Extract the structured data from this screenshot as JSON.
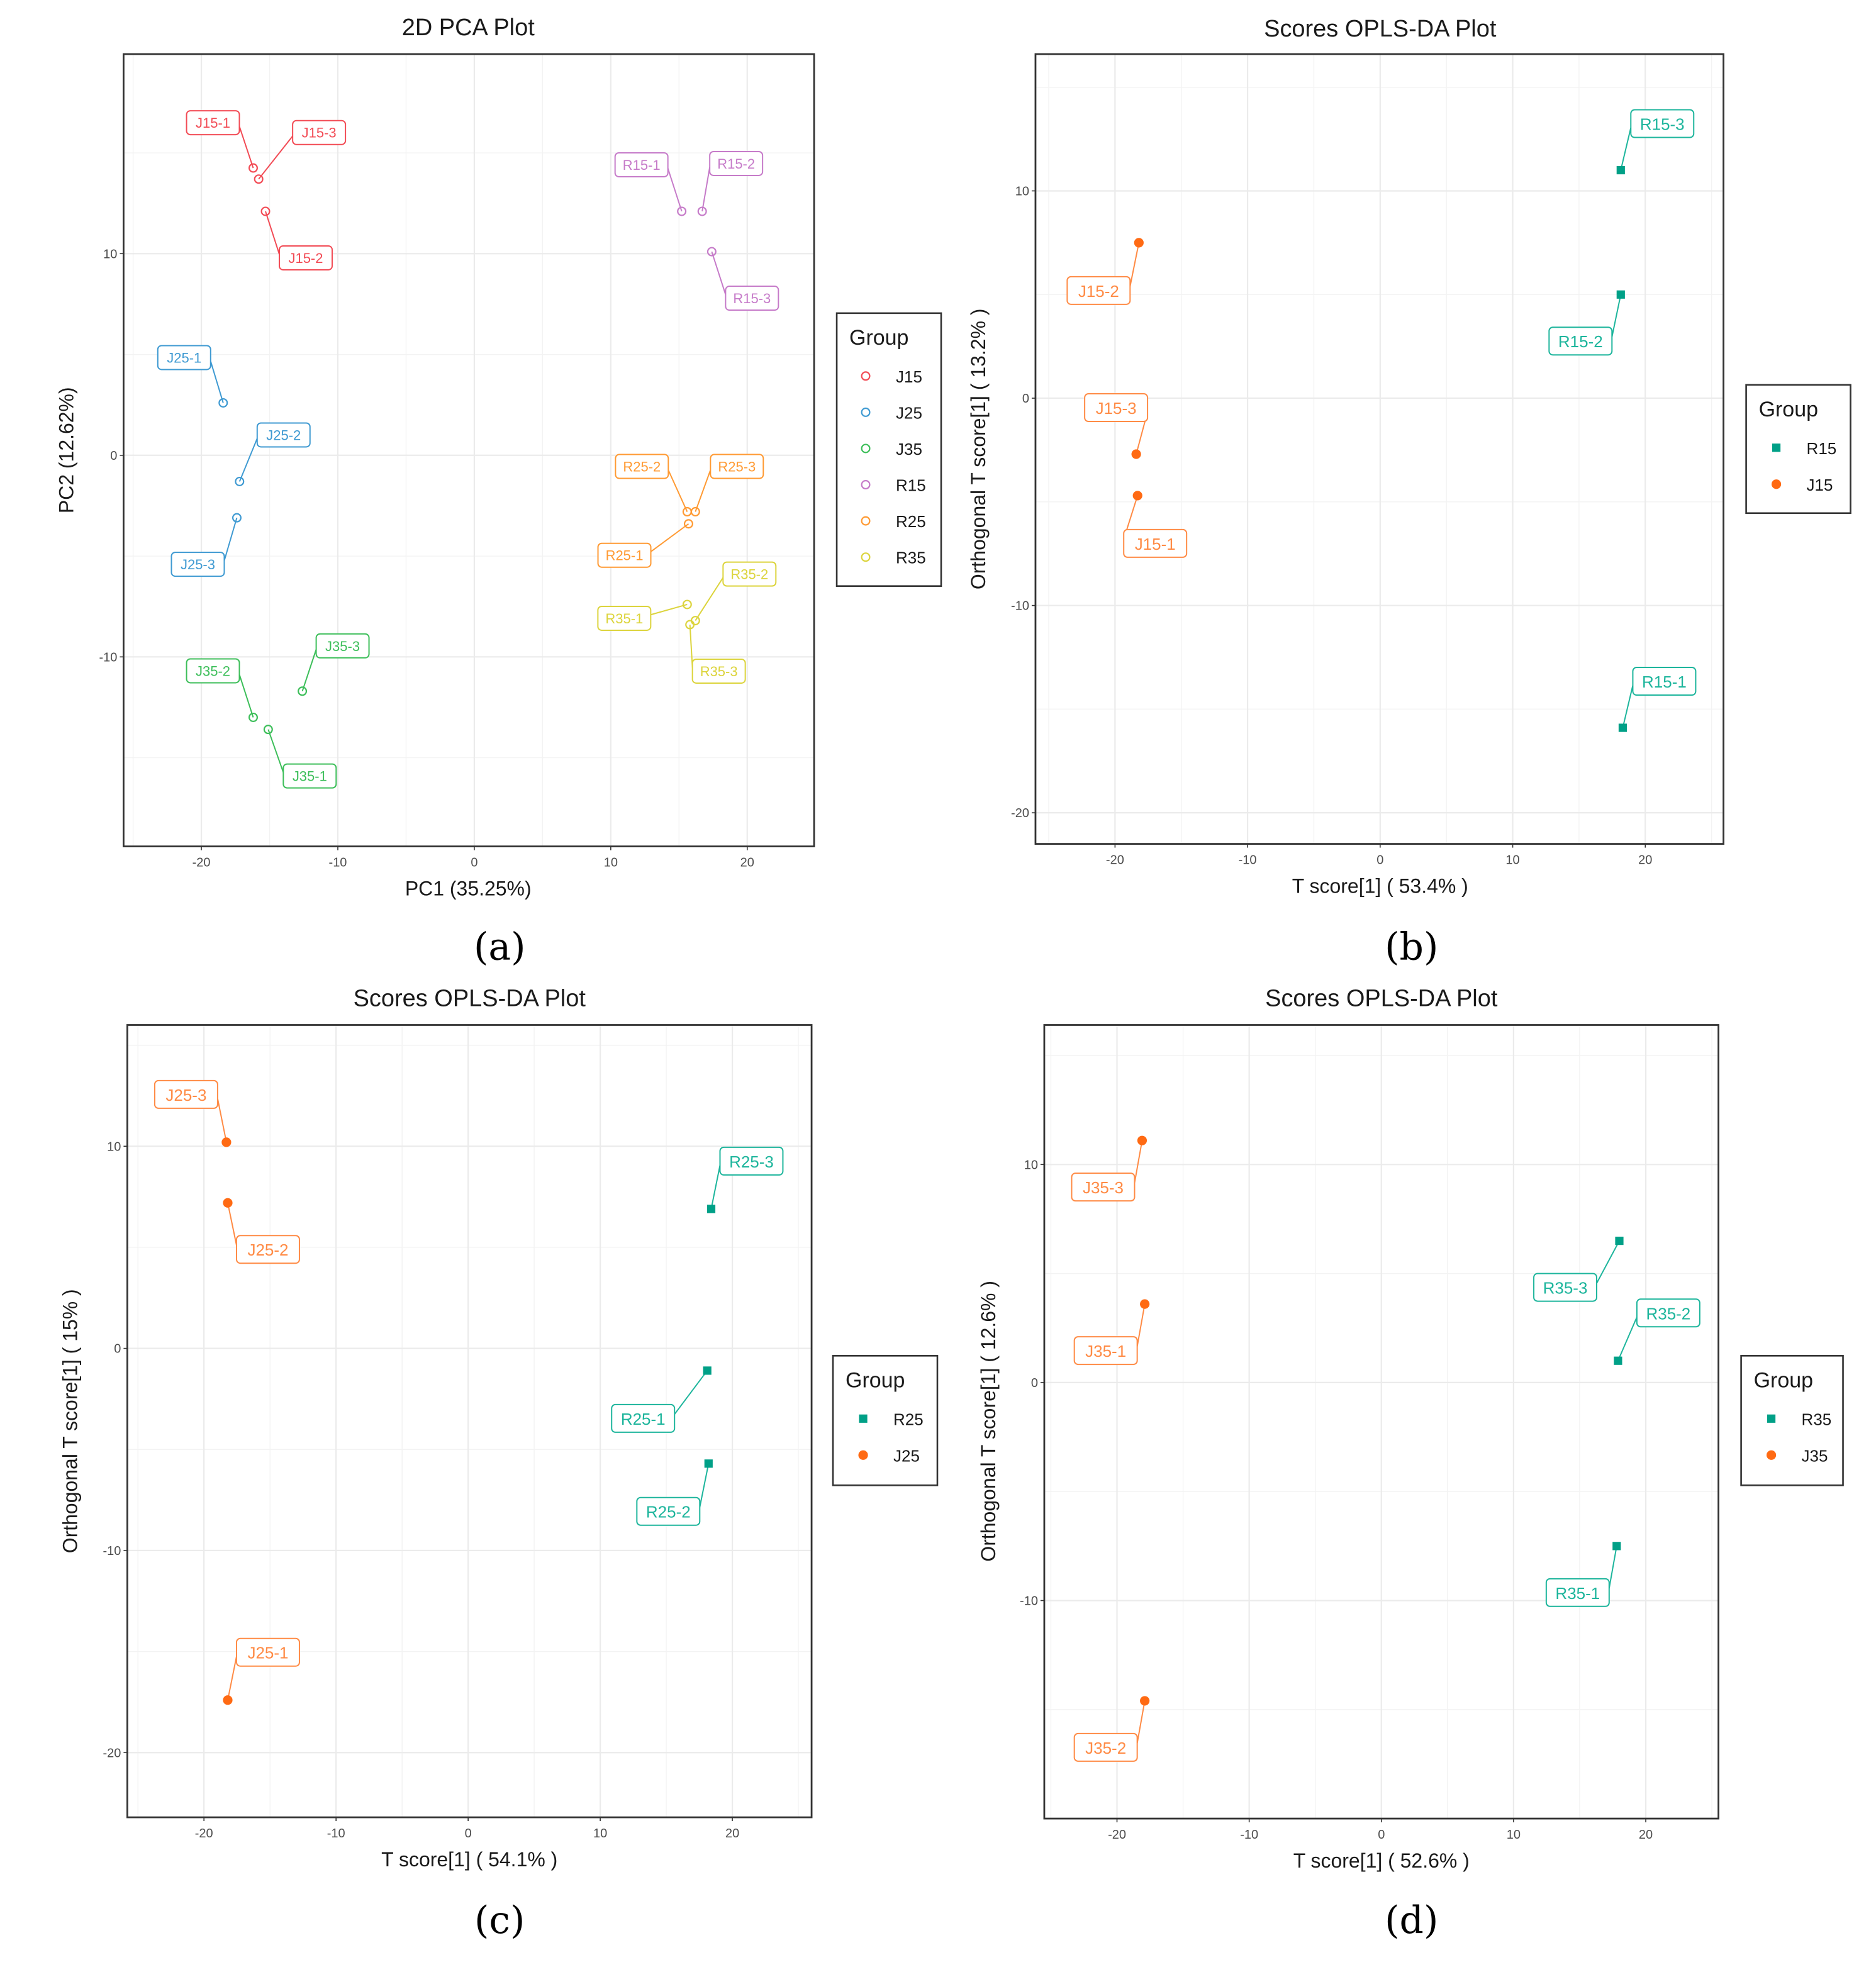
{
  "colors": {
    "J15": "#F24B55",
    "J25": "#3F9AD2",
    "J35": "#3CBE59",
    "R15": "#C67BC9",
    "R25": "#FF9A33",
    "R35": "#DCD43C",
    "opls_R": "#00A087",
    "opls_J": "#FF6A13",
    "opls_R_label": "#1DB59C",
    "opls_J_label": "#FF8B45"
  },
  "panel_tags": [
    "(a)",
    "(b)",
    "(c)",
    "(d)"
  ],
  "chart_data": [
    {
      "type": "scatter",
      "title": "2D PCA Plot",
      "xlabel": "PC1 (35.25%)",
      "ylabel": "PC2 (12.62%)",
      "xlim": [
        -25.7,
        24.9
      ],
      "ylim": [
        -19.4,
        19.9
      ],
      "xticks": [
        -20,
        -10,
        0,
        10,
        20
      ],
      "yticks": [
        -10,
        0,
        10
      ],
      "grid": true,
      "legend": {
        "title": "Group",
        "placement": "right",
        "entries": [
          "J15",
          "J25",
          "J35",
          "R15",
          "R25",
          "R35"
        ],
        "marker": [
          "circle-open",
          "circle-open",
          "circle-open",
          "circle-open",
          "circle-open",
          "circle-open"
        ]
      },
      "points": [
        {
          "label": "J15-1",
          "group": "J15",
          "x": -16.2,
          "y": 14.25
        },
        {
          "label": "J15-3",
          "group": "J15",
          "x": -15.8,
          "y": 13.7
        },
        {
          "label": "J15-2",
          "group": "J15",
          "x": -15.3,
          "y": 12.1
        },
        {
          "label": "R15-1",
          "group": "R15",
          "x": 15.2,
          "y": 12.1
        },
        {
          "label": "R15-2",
          "group": "R15",
          "x": 16.7,
          "y": 12.1
        },
        {
          "label": "R15-3",
          "group": "R15",
          "x": 17.4,
          "y": 10.1
        },
        {
          "label": "J25-1",
          "group": "J25",
          "x": -18.4,
          "y": 2.6
        },
        {
          "label": "J25-2",
          "group": "J25",
          "x": -17.2,
          "y": -1.3
        },
        {
          "label": "J25-3",
          "group": "J25",
          "x": -17.4,
          "y": -3.1
        },
        {
          "label": "R25-2",
          "group": "R25",
          "x": 15.6,
          "y": -2.8
        },
        {
          "label": "R25-3",
          "group": "R25",
          "x": 16.2,
          "y": -2.8
        },
        {
          "label": "R25-1",
          "group": "R25",
          "x": 15.7,
          "y": -3.4
        },
        {
          "label": "R35-2",
          "group": "R35",
          "x": 16.2,
          "y": -8.2
        },
        {
          "label": "R35-1",
          "group": "R35",
          "x": 15.6,
          "y": -7.4
        },
        {
          "label": "R35-3",
          "group": "R35",
          "x": 15.8,
          "y": -8.4
        },
        {
          "label": "J35-3",
          "group": "J35",
          "x": -12.6,
          "y": -11.7
        },
        {
          "label": "J35-2",
          "group": "J35",
          "x": -16.2,
          "y": -13.0
        },
        {
          "label": "J35-1",
          "group": "J35",
          "x": -15.1,
          "y": -13.6
        }
      ]
    },
    {
      "type": "scatter",
      "title": "Scores OPLS-DA Plot",
      "xlabel": "T score[1] ( 53.4% )",
      "ylabel": "Orthogonal T score[1] ( 13.2% )",
      "xlim": [
        -26,
        25.9
      ],
      "ylim": [
        -21.5,
        16.6
      ],
      "xticks": [
        -20,
        -10,
        0,
        10,
        20
      ],
      "yticks": [
        -20,
        -10,
        0,
        10
      ],
      "grid": true,
      "legend": {
        "title": "Group",
        "placement": "right",
        "entries": [
          "R15",
          "J15"
        ],
        "marker": [
          "square",
          "circle"
        ]
      },
      "points": [
        {
          "label": "R15-3",
          "group": "R15",
          "x": 18.15,
          "y": 11.0
        },
        {
          "label": "R15-2",
          "group": "R15",
          "x": 18.15,
          "y": 5.0
        },
        {
          "label": "R15-1",
          "group": "R15",
          "x": 18.3,
          "y": -15.9
        },
        {
          "label": "J15-2",
          "group": "J15",
          "x": -18.2,
          "y": 7.5
        },
        {
          "label": "J15-3",
          "group": "J15",
          "x": -18.4,
          "y": -2.7
        },
        {
          "label": "J15-1",
          "group": "J15",
          "x": -18.3,
          "y": -4.7
        }
      ]
    },
    {
      "type": "scatter",
      "title": "Scores OPLS-DA Plot",
      "xlabel": "T score[1] ( 54.1% )",
      "ylabel": "Orthogonal T score[1] ( 15% )",
      "xlim": [
        -25.8,
        26
      ],
      "ylim": [
        -23.2,
        16
      ],
      "xticks": [
        -20,
        -10,
        0,
        10,
        20
      ],
      "yticks": [
        -20,
        -10,
        0,
        10
      ],
      "grid": true,
      "legend": {
        "title": "Group",
        "placement": "right",
        "entries": [
          "R25",
          "J25"
        ],
        "marker": [
          "square",
          "circle"
        ]
      },
      "points": [
        {
          "label": "J25-3",
          "group": "J25",
          "x": -18.3,
          "y": 10.2
        },
        {
          "label": "J25-2",
          "group": "J25",
          "x": -18.2,
          "y": 7.2
        },
        {
          "label": "J25-1",
          "group": "J25",
          "x": -18.2,
          "y": -17.4
        },
        {
          "label": "R25-3",
          "group": "R25",
          "x": 18.4,
          "y": 6.9
        },
        {
          "label": "R25-1",
          "group": "R25",
          "x": 18.1,
          "y": -1.1
        },
        {
          "label": "R25-2",
          "group": "R25",
          "x": 18.2,
          "y": -5.7
        }
      ]
    },
    {
      "type": "scatter",
      "title": "Scores OPLS-DA Plot",
      "xlabel": "T score[1] ( 52.6% )",
      "ylabel": "Orthogonal T score[1] ( 12.6% )",
      "xlim": [
        -25.5,
        25.5
      ],
      "ylim": [
        -20,
        16.4
      ],
      "xticks": [
        -20,
        -10,
        0,
        10,
        20
      ],
      "yticks": [
        -10,
        0,
        10
      ],
      "grid": true,
      "legend": {
        "title": "Group",
        "placement": "right",
        "entries": [
          "R35",
          "J35"
        ],
        "marker": [
          "square",
          "circle"
        ]
      },
      "points": [
        {
          "label": "J35-3",
          "group": "J35",
          "x": -18.1,
          "y": 11.1
        },
        {
          "label": "J35-1",
          "group": "J35",
          "x": -17.9,
          "y": 3.6
        },
        {
          "label": "J35-2",
          "group": "J35",
          "x": -17.9,
          "y": -14.6
        },
        {
          "label": "R35-3",
          "group": "R35",
          "x": 18.0,
          "y": 6.5
        },
        {
          "label": "R35-2",
          "group": "R35",
          "x": 17.9,
          "y": 1.0
        },
        {
          "label": "R35-1",
          "group": "R35",
          "x": 17.8,
          "y": -7.5
        }
      ]
    }
  ]
}
